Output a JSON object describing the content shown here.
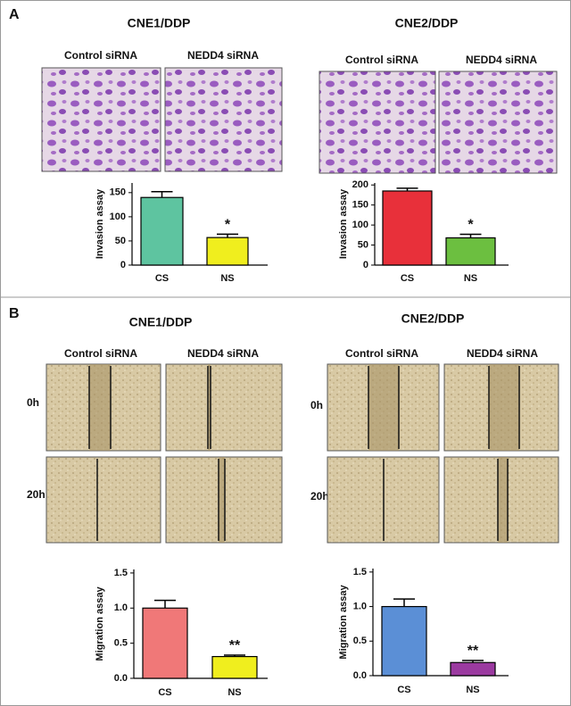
{
  "panels": [
    {
      "label": "A",
      "columns": [
        {
          "title": "CNE1/DDP",
          "images": [
            "Control siRNA",
            "NEDD4  siRNA"
          ]
        },
        {
          "title": "CNE2/DDP",
          "images": [
            "Control siRNA",
            "NEDD4 siRNA"
          ]
        }
      ]
    },
    {
      "label": "B",
      "columns": [
        {
          "title": "CNE1/DDP",
          "images": [
            "Control siRNA",
            "NEDD4  siRNA"
          ],
          "rows": [
            "0h",
            "20h"
          ]
        },
        {
          "title": "CNE2/DDP",
          "images": [
            "Control siRNA",
            "NEDD4  siRNA"
          ],
          "rows": [
            "0h",
            "20h"
          ]
        }
      ]
    }
  ],
  "chart_data": [
    {
      "type": "bar",
      "y_label": "Invasion  assay",
      "categories": [
        "CS",
        "NS"
      ],
      "values": [
        140,
        57
      ],
      "errors": [
        12,
        7
      ],
      "colors": [
        "#5ec4a0",
        "#f0ee1e"
      ],
      "annotation": "*",
      "ylim": [
        0,
        170
      ],
      "yticks": [
        0,
        50,
        100,
        150
      ]
    },
    {
      "type": "bar",
      "y_label": "Invasion  assay",
      "categories": [
        "CS",
        "NS"
      ],
      "values": [
        185,
        68
      ],
      "errors": [
        7,
        9
      ],
      "colors": [
        "#e8303a",
        "#6cbf40"
      ],
      "annotation": "*",
      "ylim": [
        0,
        205
      ],
      "yticks": [
        0,
        50,
        100,
        150,
        200
      ]
    },
    {
      "type": "bar",
      "y_label": "Migration assay",
      "categories": [
        "CS",
        "NS"
      ],
      "values": [
        1.0,
        0.31
      ],
      "errors": [
        0.11,
        0.02
      ],
      "colors": [
        "#f07878",
        "#f0ee1e"
      ],
      "annotation": "**",
      "ylim": [
        0,
        1.55
      ],
      "yticks": [
        {
          "value": 0,
          "label": "0.0"
        },
        0.5,
        {
          "value": 1,
          "label": "1.0"
        },
        1.5
      ]
    },
    {
      "type": "bar",
      "y_label": "Migration assay",
      "categories": [
        "CS",
        "NS"
      ],
      "values": [
        1.0,
        0.19
      ],
      "errors": [
        0.11,
        0.03
      ],
      "colors": [
        "#5b8fd6",
        "#9b3aa0"
      ],
      "annotation": "**",
      "ylim": [
        0,
        1.55
      ],
      "yticks": [
        {
          "value": 0,
          "label": "0.0"
        },
        0.5,
        {
          "value": 1,
          "label": "1.0"
        },
        1.5
      ]
    }
  ]
}
